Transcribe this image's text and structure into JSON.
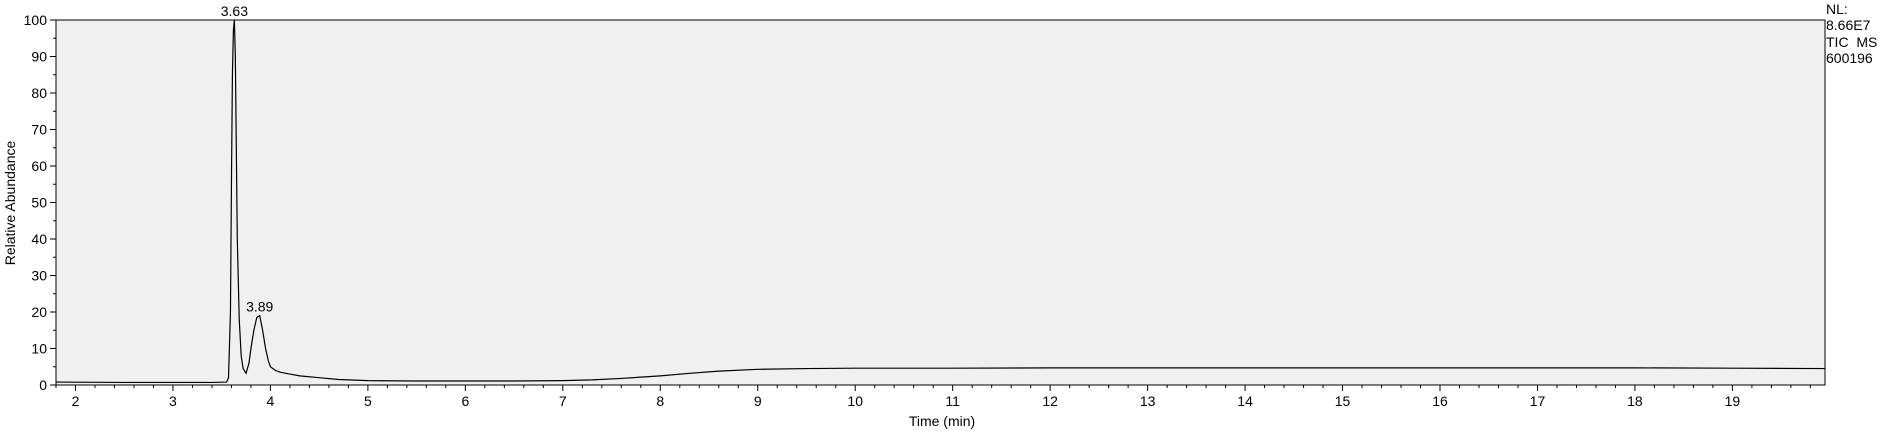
{
  "chart_data": {
    "type": "line",
    "xlabel": "Time (min)",
    "ylabel": "Relative Abundance",
    "xlim": [
      1.8,
      19.95
    ],
    "ylim": [
      0,
      100
    ],
    "x_ticks": [
      2,
      3,
      4,
      5,
      6,
      7,
      8,
      9,
      10,
      11,
      12,
      13,
      14,
      15,
      16,
      17,
      18,
      19
    ],
    "y_ticks": [
      0,
      10,
      20,
      30,
      40,
      50,
      60,
      70,
      80,
      90,
      100
    ],
    "series": [
      {
        "x": [
          1.8,
          2.5,
          3.0,
          3.4,
          3.55,
          3.57,
          3.59,
          3.6,
          3.61,
          3.62,
          3.63,
          3.64,
          3.65,
          3.66,
          3.68,
          3.7,
          3.72,
          3.75,
          3.78,
          3.8,
          3.83,
          3.86,
          3.89,
          3.92,
          3.95,
          3.98,
          4.0,
          4.05,
          4.1,
          4.2,
          4.3,
          4.5,
          4.7,
          5.0,
          5.5,
          6.0,
          6.5,
          7.0,
          7.3,
          7.6,
          8.0,
          8.3,
          8.6,
          9.0,
          9.5,
          10.0,
          11.0,
          12.0,
          13.0,
          14.0,
          15.0,
          16.0,
          17.0,
          18.0,
          19.0,
          19.95
        ],
        "y": [
          0.8,
          0.7,
          0.7,
          0.7,
          0.8,
          2,
          20,
          55,
          85,
          97,
          100,
          90,
          65,
          40,
          18,
          8,
          4.5,
          3.2,
          6,
          10,
          15,
          18.5,
          19,
          15,
          10,
          6.5,
          5,
          4,
          3.5,
          3,
          2.5,
          2,
          1.5,
          1.2,
          1.1,
          1.1,
          1.1,
          1.2,
          1.4,
          1.8,
          2.5,
          3.2,
          3.8,
          4.3,
          4.5,
          4.6,
          4.6,
          4.7,
          4.7,
          4.7,
          4.7,
          4.7,
          4.7,
          4.7,
          4.6,
          4.5
        ]
      }
    ],
    "peak_labels": [
      {
        "x": 3.63,
        "y": 100,
        "text": "3.63"
      },
      {
        "x": 3.89,
        "y": 19,
        "text": "3.89"
      }
    ],
    "info": {
      "nl_label": "NL:",
      "nl_value": "8.66E7",
      "scan_filter": "TIC  MS",
      "sample": "600196"
    },
    "grid": false
  }
}
